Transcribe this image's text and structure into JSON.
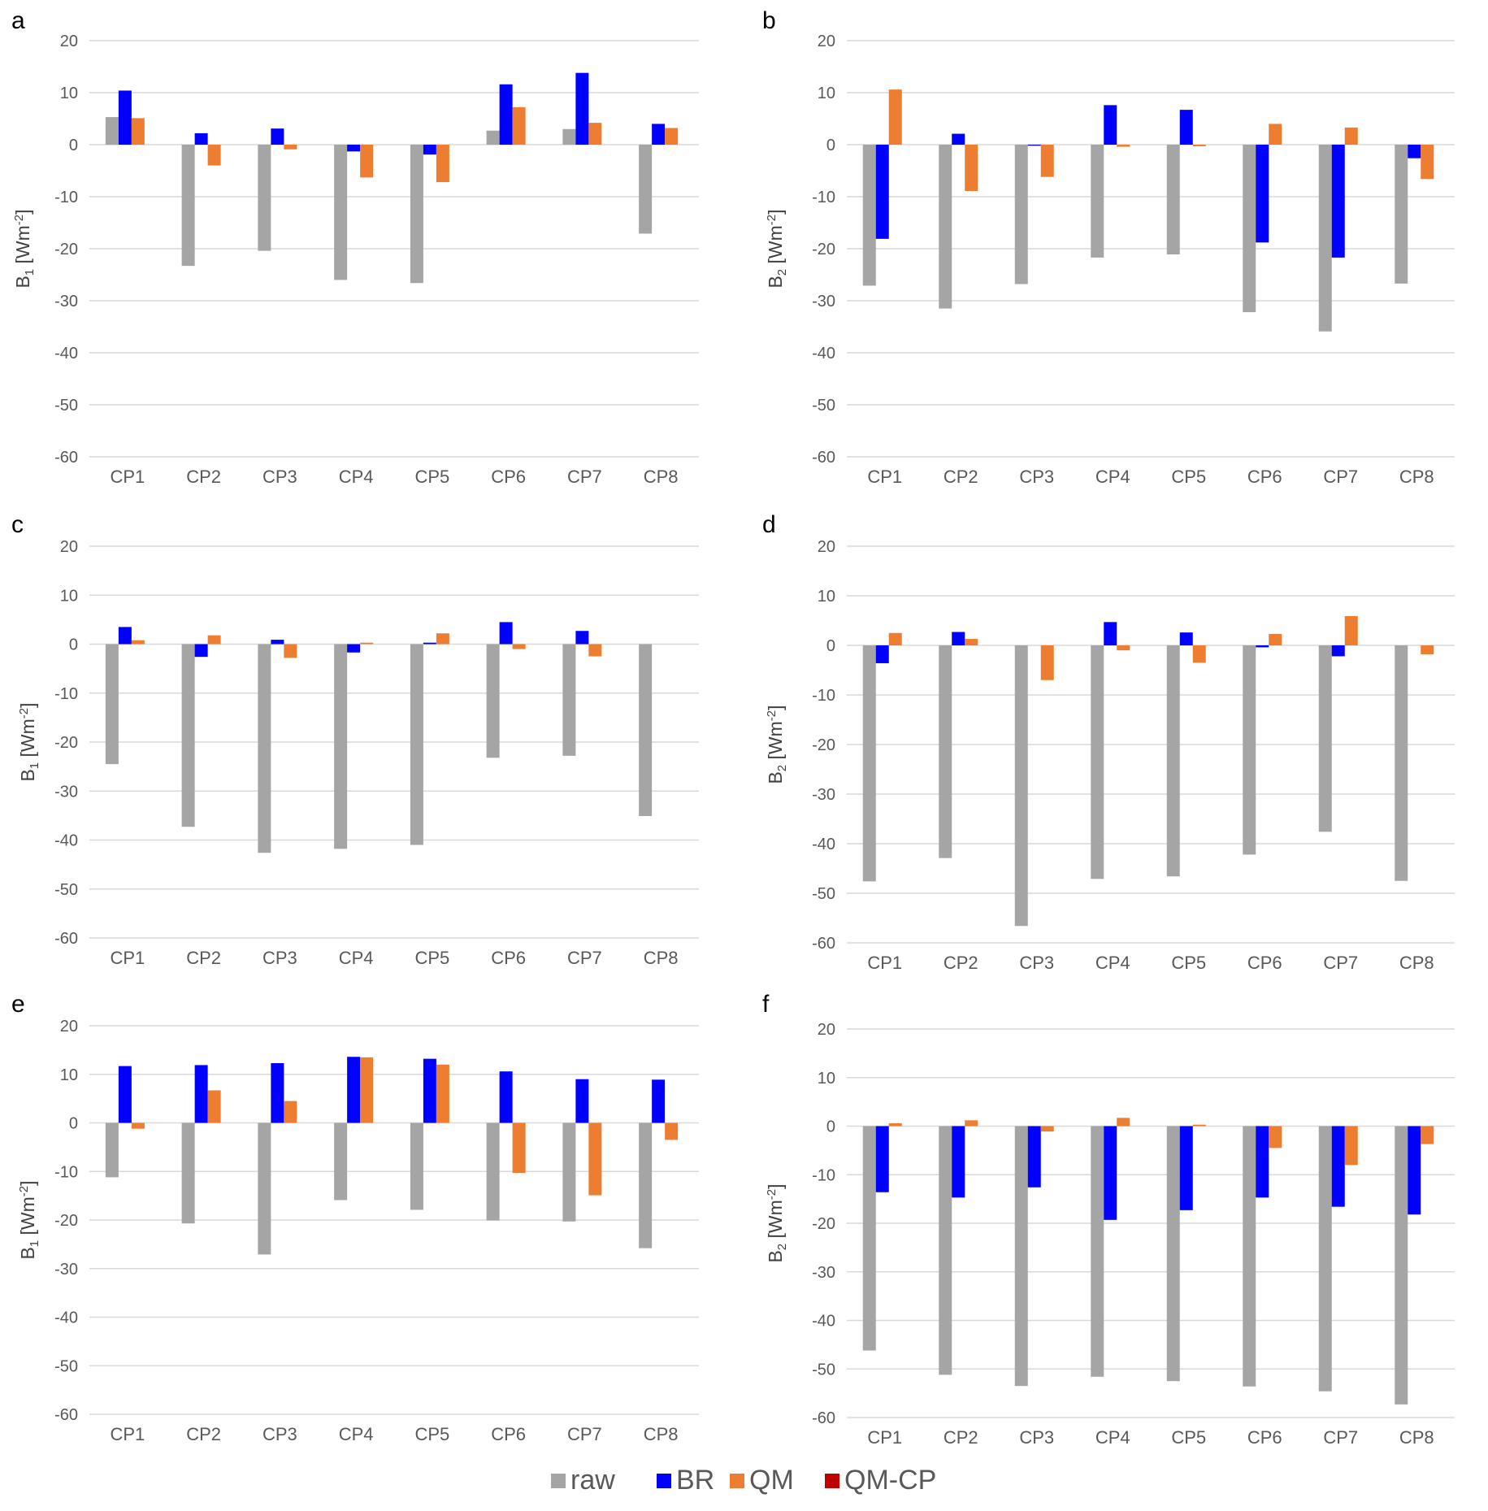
{
  "chart_data": [
    {
      "panel": "a",
      "type": "bar",
      "ylabel_main": "B",
      "ylabel_sub": "1",
      "ylabel_unit_pre": " [Wm",
      "ylabel_unit_sup": "-2",
      "ylabel_unit_post": "]",
      "ylim": [
        -60,
        20
      ],
      "yticks": [
        20,
        10,
        0,
        -10,
        -20,
        -30,
        -40,
        -50,
        -60
      ],
      "categories": [
        "CP1",
        "CP2",
        "CP3",
        "CP4",
        "CP5",
        "CP6",
        "CP7",
        "CP8"
      ],
      "series": [
        {
          "name": "raw",
          "values": [
            5.3,
            -23.3,
            -20.4,
            -26.0,
            -26.6,
            2.7,
            3.0,
            -17.1
          ]
        },
        {
          "name": "BR",
          "values": [
            10.4,
            2.2,
            3.1,
            -1.3,
            -1.9,
            11.6,
            13.8,
            4.0
          ]
        },
        {
          "name": "QM",
          "values": [
            5.1,
            -4.0,
            -0.9,
            -6.3,
            -7.2,
            7.2,
            4.2,
            3.2
          ]
        },
        {
          "name": "QM-CP",
          "values": [
            0,
            0,
            0,
            0,
            0,
            0,
            0,
            0
          ]
        }
      ]
    },
    {
      "panel": "b",
      "type": "bar",
      "ylabel_main": "B",
      "ylabel_sub": "2",
      "ylabel_unit_pre": " [Wm",
      "ylabel_unit_sup": "-2",
      "ylabel_unit_post": "]",
      "ylim": [
        -60,
        20
      ],
      "yticks": [
        20,
        10,
        0,
        -10,
        -20,
        -30,
        -40,
        -50,
        -60
      ],
      "categories": [
        "CP1",
        "CP2",
        "CP3",
        "CP4",
        "CP5",
        "CP6",
        "CP7",
        "CP8"
      ],
      "series": [
        {
          "name": "raw",
          "values": [
            -27.1,
            -31.5,
            -26.8,
            -21.7,
            -21.1,
            -32.2,
            -35.9,
            -26.7
          ]
        },
        {
          "name": "BR",
          "values": [
            -18.1,
            2.1,
            -0.2,
            7.6,
            6.7,
            -18.8,
            -21.7,
            -2.6
          ]
        },
        {
          "name": "QM",
          "values": [
            10.6,
            -8.9,
            -6.2,
            -0.4,
            -0.3,
            4.0,
            3.3,
            -6.6
          ]
        },
        {
          "name": "QM-CP",
          "values": [
            0,
            0,
            0,
            0,
            0,
            0,
            0,
            0
          ]
        }
      ]
    },
    {
      "panel": "c",
      "type": "bar",
      "ylabel_main": "B",
      "ylabel_sub": "1",
      "ylabel_unit_pre": " [Wm",
      "ylabel_unit_sup": "-2",
      "ylabel_unit_post": "]",
      "ylim": [
        -60,
        20
      ],
      "yticks": [
        20,
        10,
        0,
        -10,
        -20,
        -30,
        -40,
        -50,
        -60
      ],
      "categories": [
        "CP1",
        "CP2",
        "CP3",
        "CP4",
        "CP5",
        "CP6",
        "CP7",
        "CP8"
      ],
      "series": [
        {
          "name": "raw",
          "values": [
            -24.5,
            -37.3,
            -42.6,
            -41.8,
            -41.0,
            -23.2,
            -22.8,
            -35.1
          ]
        },
        {
          "name": "BR",
          "values": [
            3.5,
            -2.6,
            0.9,
            -1.7,
            0.3,
            4.5,
            2.7,
            0
          ]
        },
        {
          "name": "QM",
          "values": [
            0.8,
            1.8,
            -2.8,
            0.3,
            2.2,
            -1.0,
            -2.5,
            0
          ]
        },
        {
          "name": "QM-CP",
          "values": [
            0,
            0,
            0,
            0,
            0,
            0,
            0,
            0
          ]
        }
      ]
    },
    {
      "panel": "d",
      "type": "bar",
      "ylabel_main": "B",
      "ylabel_sub": "2",
      "ylabel_unit_pre": " [Wm",
      "ylabel_unit_sup": "-2",
      "ylabel_unit_post": "]",
      "ylim": [
        -60,
        20
      ],
      "yticks": [
        20,
        10,
        0,
        -10,
        -20,
        -30,
        -40,
        -50,
        -60
      ],
      "categories": [
        "CP1",
        "CP2",
        "CP3",
        "CP4",
        "CP5",
        "CP6",
        "CP7",
        "CP8"
      ],
      "series": [
        {
          "name": "raw",
          "values": [
            -47.6,
            -42.9,
            -56.6,
            -47.1,
            -46.6,
            -42.2,
            -37.6,
            -47.5
          ]
        },
        {
          "name": "BR",
          "values": [
            -3.6,
            2.7,
            0,
            4.7,
            2.6,
            -0.4,
            -2.2,
            0
          ]
        },
        {
          "name": "QM",
          "values": [
            2.5,
            1.3,
            -7.0,
            -1.0,
            -3.5,
            2.3,
            5.9,
            -1.8
          ]
        },
        {
          "name": "QM-CP",
          "values": [
            0,
            0,
            0,
            0,
            0,
            0,
            0,
            0
          ]
        }
      ]
    },
    {
      "panel": "e",
      "type": "bar",
      "ylabel_main": "B",
      "ylabel_sub": "1",
      "ylabel_unit_pre": " [Wm",
      "ylabel_unit_sup": "-2",
      "ylabel_unit_post": "]",
      "ylim": [
        -60,
        20
      ],
      "yticks": [
        20,
        10,
        0,
        -10,
        -20,
        -30,
        -40,
        -50,
        -60
      ],
      "categories": [
        "CP1",
        "CP2",
        "CP3",
        "CP4",
        "CP5",
        "CP6",
        "CP7",
        "CP8"
      ],
      "series": [
        {
          "name": "raw",
          "values": [
            -11.2,
            -20.7,
            -27.1,
            -15.9,
            -17.9,
            -20.1,
            -20.3,
            -25.8
          ]
        },
        {
          "name": "BR",
          "values": [
            11.7,
            11.9,
            12.3,
            13.6,
            13.2,
            10.6,
            9.0,
            8.9
          ]
        },
        {
          "name": "QM",
          "values": [
            -1.2,
            6.7,
            4.5,
            13.5,
            12.0,
            -10.3,
            -14.9,
            -3.5
          ]
        },
        {
          "name": "QM-CP",
          "values": [
            0,
            0,
            0,
            0,
            0,
            0,
            0,
            0
          ]
        }
      ]
    },
    {
      "panel": "f",
      "type": "bar",
      "ylabel_main": "B",
      "ylabel_sub": "2",
      "ylabel_unit_pre": " [Wm",
      "ylabel_unit_sup": "-2",
      "ylabel_unit_post": "]",
      "ylim": [
        -60,
        20
      ],
      "yticks": [
        20,
        10,
        0,
        -10,
        -20,
        -30,
        -40,
        -50,
        -60
      ],
      "categories": [
        "CP1",
        "CP2",
        "CP3",
        "CP4",
        "CP5",
        "CP6",
        "CP7",
        "CP8"
      ],
      "series": [
        {
          "name": "raw",
          "values": [
            -46.2,
            -51.2,
            -53.5,
            -51.6,
            -52.5,
            -53.6,
            -54.6,
            -57.3
          ]
        },
        {
          "name": "BR",
          "values": [
            -13.6,
            -14.7,
            -12.6,
            -19.3,
            -17.3,
            -14.7,
            -16.6,
            -18.2
          ]
        },
        {
          "name": "QM",
          "values": [
            0.6,
            1.2,
            -1.1,
            1.7,
            0.3,
            -4.5,
            -8.0,
            -3.7
          ]
        },
        {
          "name": "QM-CP",
          "values": [
            0,
            0,
            0,
            0,
            0,
            0,
            0,
            0
          ]
        }
      ]
    }
  ],
  "legend": [
    {
      "name": "raw",
      "color": "#a5a5a5"
    },
    {
      "name": "BR",
      "color": "#0000ff"
    },
    {
      "name": "QM",
      "color": "#ed7d31"
    },
    {
      "name": "QM-CP",
      "color": "#c00000"
    }
  ]
}
